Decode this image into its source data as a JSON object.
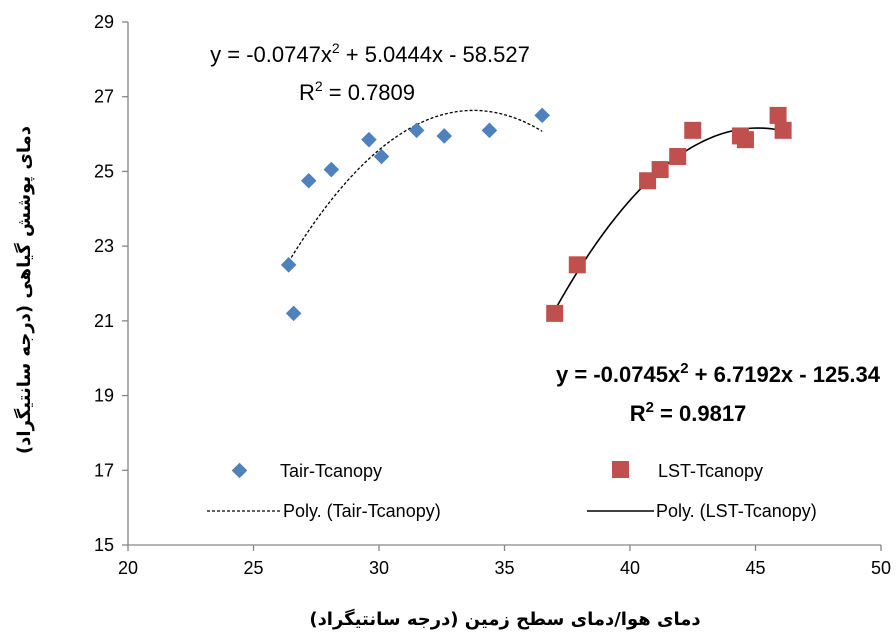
{
  "chart_data": {
    "type": "scatter",
    "xlabel": "دمای هوا/دمای سطح زمین (درجه سانتیگراد)",
    "ylabel": "دمای پوشش گیاهی (درجه سانتیگراد)",
    "xlim": [
      20,
      50
    ],
    "ylim": [
      15,
      29
    ],
    "xticks": [
      20,
      25,
      30,
      35,
      40,
      45,
      50
    ],
    "yticks": [
      15,
      17,
      19,
      21,
      23,
      25,
      27,
      29
    ],
    "grid": false,
    "legend_position": "bottom",
    "series": [
      {
        "name": "Tair-Tcanopy",
        "marker": "diamond",
        "color": "#4F81BD",
        "points": [
          [
            26.4,
            22.5
          ],
          [
            26.6,
            21.2
          ],
          [
            27.2,
            24.75
          ],
          [
            28.1,
            25.05
          ],
          [
            29.6,
            25.85
          ],
          [
            30.1,
            25.4
          ],
          [
            31.5,
            26.1
          ],
          [
            32.6,
            25.95
          ],
          [
            34.4,
            26.1
          ],
          [
            36.5,
            26.5
          ]
        ]
      },
      {
        "name": "LST-Tcanopy",
        "marker": "square",
        "color": "#C0504D",
        "points": [
          [
            37.0,
            21.2
          ],
          [
            37.9,
            22.5
          ],
          [
            40.7,
            24.75
          ],
          [
            41.2,
            25.05
          ],
          [
            41.9,
            25.4
          ],
          [
            42.5,
            26.1
          ],
          [
            44.4,
            25.95
          ],
          [
            44.6,
            25.85
          ],
          [
            45.9,
            26.5
          ],
          [
            46.1,
            26.1
          ]
        ]
      }
    ],
    "trendlines": [
      {
        "name": "Poly. (Tair-Tcanopy)",
        "style": "dashed",
        "color": "#000000",
        "coefficients": [
          -0.0747,
          5.0444,
          -58.527
        ],
        "x_range": [
          26.4,
          36.5
        ],
        "equation_prefix": "y = -0.0747x",
        "equation_suffix": " + 5.0444x - 58.527",
        "r2_label": "R",
        "r2_value": " = 0.7809"
      },
      {
        "name": "Poly. (LST-Tcanopy)",
        "style": "solid",
        "color": "#000000",
        "coefficients": [
          -0.0745,
          6.7192,
          -125.34
        ],
        "x_range": [
          37.0,
          46.1
        ],
        "equation_prefix": "y = -0.0745x",
        "equation_suffix": " + 6.7192x - 125.34",
        "r2_label": "R",
        "r2_value": " = 0.9817"
      }
    ],
    "superscript": "2"
  }
}
